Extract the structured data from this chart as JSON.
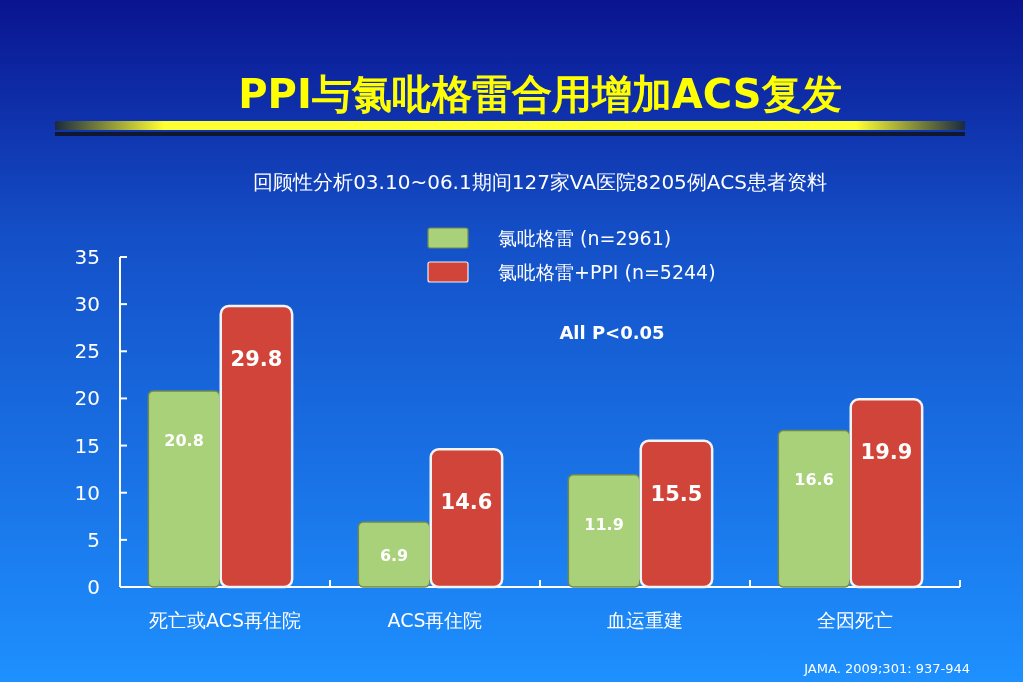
{
  "chart_data": {
    "type": "bar",
    "title": "PPI与氯吡格雷合用增加ACS复发",
    "subtitle": "回顾性分析03.10~06.1期间127家VA医院8205例ACS患者资料",
    "categories": [
      "死亡或ACS再住院",
      "ACS再住院",
      "血运重建",
      "全因死亡"
    ],
    "series": [
      {
        "name": "氯吡格雷 (n=2961)",
        "color": "#a9d17a",
        "values": [
          20.8,
          6.9,
          11.9,
          16.6
        ]
      },
      {
        "name": "氯吡格雷+PPI (n=5244)",
        "color": "#d0443a",
        "values": [
          29.8,
          14.6,
          15.5,
          19.9
        ]
      }
    ],
    "ylim": [
      0,
      35
    ],
    "yticks": [
      0,
      5,
      10,
      15,
      20,
      25,
      30,
      35
    ],
    "data_labels": true,
    "legend": "top",
    "annotations": [
      "All P<0.05",
      "JAMA. 2009;301: 937-944"
    ]
  }
}
